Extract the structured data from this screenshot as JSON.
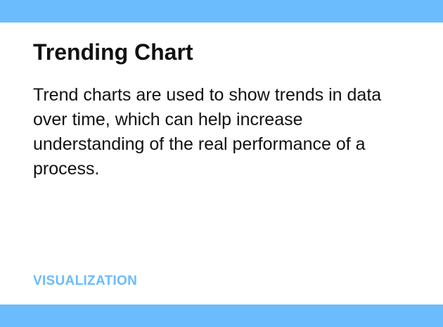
{
  "card": {
    "title": "Trending Chart",
    "description": "Trend charts are used to show trends in data over time, which can help increase understanding of the real performance of a process.",
    "category": "VISUALIZATION"
  },
  "colors": {
    "accent": "#6bbcfd",
    "text": "#111111",
    "background": "#ffffff"
  }
}
